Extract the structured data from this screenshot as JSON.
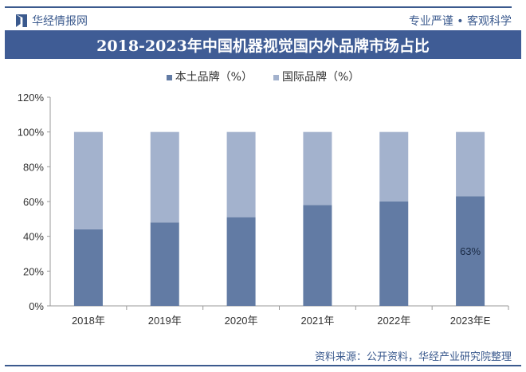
{
  "header": {
    "brand": "华经情报网",
    "slogan": "专业严谨 • 客观科学"
  },
  "footer": {
    "source": "资料来源：公开资料，华经产业研究院整理"
  },
  "colors": {
    "domestic": "#627ba4",
    "international": "#a3b2cd",
    "title_bg": "#3f5c95"
  },
  "chart_data": {
    "type": "bar",
    "stacked": true,
    "title": "2018-2023年中国机器视觉国内外品牌市场占比",
    "categories": [
      "2018年",
      "2019年",
      "2020年",
      "2021年",
      "2022年",
      "2023年E"
    ],
    "series": [
      {
        "name": "本土品牌（%）",
        "values": [
          44,
          48,
          51,
          58,
          60,
          63
        ]
      },
      {
        "name": "国际品牌（%）",
        "values": [
          56,
          52,
          49,
          42,
          40,
          37
        ]
      }
    ],
    "annotations": [
      {
        "category": "2023年E",
        "series": "本土品牌（%）",
        "label": "63%"
      }
    ],
    "yticks": [
      "0%",
      "20%",
      "40%",
      "60%",
      "80%",
      "100%",
      "120%"
    ],
    "ylim": [
      0,
      120
    ],
    "xlabel": "",
    "ylabel": "",
    "legend": "top"
  }
}
